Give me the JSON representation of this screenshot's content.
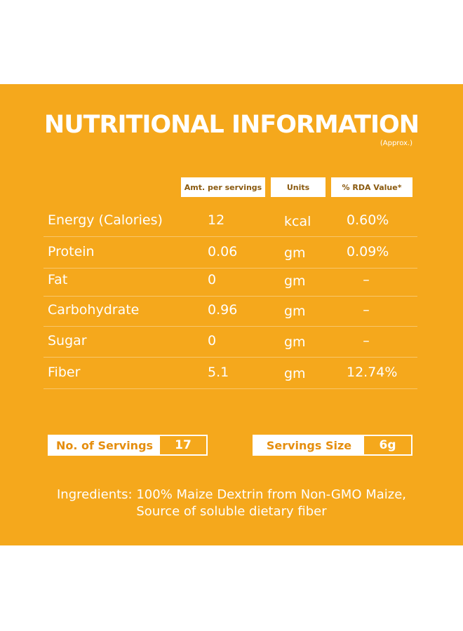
{
  "header": {
    "title": "NUTRITIONAL INFORMATION",
    "note": "(Approx.)"
  },
  "table": {
    "columns": [
      "Amt. per servings",
      "Units",
      "% RDA Value*"
    ],
    "rows": [
      [
        "Energy (Calories)",
        "12",
        "kcal",
        "0.60%"
      ],
      [
        "Protein",
        "0.06",
        "gm",
        "0.09%"
      ],
      [
        "Fat",
        "0",
        "gm",
        "–"
      ],
      [
        "Carbohydrate",
        "0.96",
        "gm",
        "–"
      ],
      [
        "Sugar",
        "0",
        "gm",
        "–"
      ],
      [
        "Fiber",
        "5.1",
        "gm",
        "12.74%"
      ]
    ]
  },
  "servings": [
    {
      "label": "No. of Servings",
      "value": "17"
    },
    {
      "label": "Servings Size",
      "value": "6g"
    }
  ],
  "ingredients": [
    "Ingredients: 100% Maize Dextrin from Non-GMO Maize,",
    "Source of soluble dietary fiber"
  ]
}
